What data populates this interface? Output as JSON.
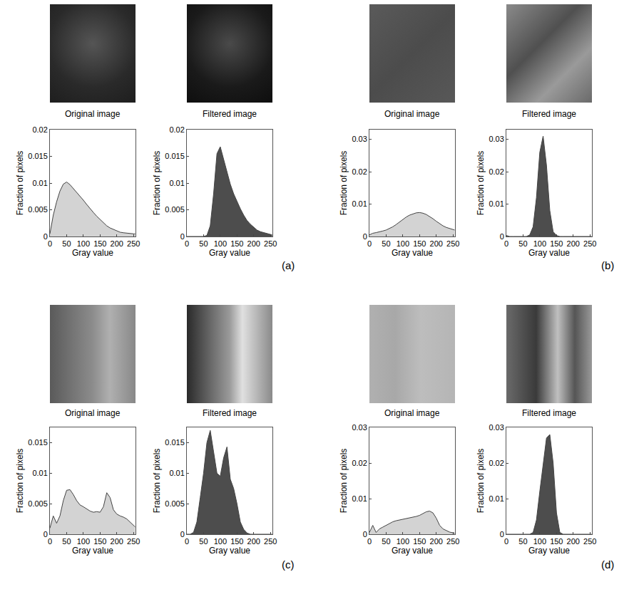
{
  "chart_data": [
    {
      "type": "area",
      "xlabel": "Gray value",
      "ylabel": "Fraction of pixels",
      "color": "#d3d3d3",
      "x": [
        0,
        10,
        20,
        30,
        40,
        50,
        60,
        70,
        80,
        90,
        100,
        110,
        120,
        130,
        140,
        150,
        160,
        170,
        180,
        190,
        200,
        210,
        220,
        230,
        240,
        250,
        255
      ],
      "values": [
        0.0005,
        0.004,
        0.0065,
        0.0085,
        0.0098,
        0.0102,
        0.0097,
        0.009,
        0.0082,
        0.0075,
        0.0068,
        0.006,
        0.0052,
        0.0045,
        0.0038,
        0.0032,
        0.0025,
        0.002,
        0.0016,
        0.0013,
        0.001,
        0.0008,
        0.0007,
        0.0006,
        0.0006,
        0.0005,
        0.0005
      ],
      "xlim": [
        0,
        256
      ],
      "xticks": [
        0,
        50,
        100,
        150,
        200,
        250
      ],
      "ylim": [
        0,
        0.02
      ],
      "yticks": [
        0,
        0.005,
        0.01,
        0.015,
        0.02
      ]
    },
    {
      "type": "area",
      "xlabel": "Gray value",
      "ylabel": "Fraction of pixels",
      "color": "#4d4d4d",
      "x": [
        0,
        10,
        20,
        30,
        40,
        50,
        60,
        70,
        80,
        90,
        100,
        110,
        120,
        130,
        140,
        150,
        160,
        170,
        180,
        190,
        200,
        210,
        220,
        230,
        240,
        250,
        255
      ],
      "values": [
        0,
        0,
        0,
        0,
        0,
        0,
        0.0002,
        0.002,
        0.008,
        0.0155,
        0.0168,
        0.0145,
        0.012,
        0.0098,
        0.008,
        0.0065,
        0.0052,
        0.004,
        0.003,
        0.0023,
        0.0017,
        0.0012,
        0.0009,
        0.0007,
        0.0005,
        0.0004,
        0.0003
      ],
      "xlim": [
        0,
        256
      ],
      "xticks": [
        0,
        50,
        100,
        150,
        200,
        250
      ],
      "ylim": [
        0,
        0.02
      ],
      "yticks": [
        0,
        0.005,
        0.01,
        0.015,
        0.02
      ]
    },
    {
      "type": "area",
      "xlabel": "Gray value",
      "ylabel": "Fraction of pixels",
      "color": "#d3d3d3",
      "x": [
        0,
        10,
        20,
        30,
        40,
        50,
        60,
        70,
        80,
        90,
        100,
        110,
        120,
        130,
        140,
        150,
        160,
        170,
        180,
        190,
        200,
        210,
        220,
        230,
        240,
        250,
        255
      ],
      "values": [
        0.0005,
        0.001,
        0.0012,
        0.0014,
        0.0017,
        0.002,
        0.0025,
        0.003,
        0.0037,
        0.0045,
        0.0053,
        0.006,
        0.0066,
        0.007,
        0.0073,
        0.0074,
        0.0072,
        0.0068,
        0.0062,
        0.0055,
        0.0047,
        0.004,
        0.0033,
        0.0028,
        0.0025,
        0.0022,
        0.002
      ],
      "xlim": [
        0,
        256
      ],
      "xticks": [
        0,
        50,
        100,
        150,
        200,
        250
      ],
      "ylim": [
        0,
        0.033
      ],
      "yticks": [
        0,
        0.01,
        0.02,
        0.03
      ]
    },
    {
      "type": "area",
      "xlabel": "Gray value",
      "ylabel": "Fraction of pixels",
      "color": "#4d4d4d",
      "x": [
        0,
        10,
        20,
        30,
        40,
        50,
        60,
        70,
        80,
        90,
        100,
        110,
        120,
        130,
        140,
        150,
        160,
        170,
        180,
        190,
        200,
        210,
        220,
        230,
        240,
        250,
        255
      ],
      "values": [
        0.0003,
        0,
        0,
        0,
        0,
        0,
        0,
        0.0005,
        0.003,
        0.012,
        0.026,
        0.031,
        0.022,
        0.008,
        0.0015,
        0.0003,
        0,
        0,
        0,
        0,
        0,
        0,
        0,
        0,
        0,
        0,
        0
      ],
      "xlim": [
        0,
        256
      ],
      "xticks": [
        0,
        50,
        100,
        150,
        200,
        250
      ],
      "ylim": [
        0,
        0.033
      ],
      "yticks": [
        0,
        0.01,
        0.02,
        0.03
      ]
    },
    {
      "type": "area",
      "xlabel": "Gray value",
      "ylabel": "Fraction of pixels",
      "color": "#d3d3d3",
      "x": [
        0,
        10,
        20,
        30,
        40,
        50,
        60,
        70,
        80,
        90,
        100,
        110,
        120,
        130,
        140,
        150,
        160,
        170,
        180,
        190,
        200,
        210,
        220,
        230,
        240,
        250,
        255
      ],
      "values": [
        0.001,
        0.003,
        0.0018,
        0.003,
        0.0055,
        0.0072,
        0.0073,
        0.0065,
        0.0055,
        0.0048,
        0.0045,
        0.0042,
        0.0038,
        0.0036,
        0.0037,
        0.0036,
        0.0045,
        0.0068,
        0.006,
        0.004,
        0.0033,
        0.003,
        0.0028,
        0.0025,
        0.002,
        0.0015,
        0.0012
      ],
      "xlim": [
        0,
        256
      ],
      "xticks": [
        0,
        50,
        100,
        150,
        200,
        250
      ],
      "ylim": [
        0,
        0.0175
      ],
      "yticks": [
        0,
        0.005,
        0.01,
        0.015
      ]
    },
    {
      "type": "area",
      "xlabel": "Gray value",
      "ylabel": "Fraction of pixels",
      "color": "#4d4d4d",
      "x": [
        0,
        10,
        20,
        30,
        40,
        50,
        60,
        70,
        80,
        90,
        100,
        110,
        120,
        130,
        140,
        150,
        160,
        170,
        180,
        190,
        200,
        210,
        220,
        230,
        240,
        250,
        255
      ],
      "values": [
        0,
        0,
        0.0003,
        0.002,
        0.006,
        0.01,
        0.015,
        0.017,
        0.0135,
        0.01,
        0.0095,
        0.0125,
        0.0143,
        0.009,
        0.0075,
        0.005,
        0.002,
        0.0008,
        0.0002,
        0,
        0,
        0,
        0,
        0,
        0,
        0,
        0
      ],
      "xlim": [
        0,
        256
      ],
      "xticks": [
        0,
        50,
        100,
        150,
        200,
        250
      ],
      "ylim": [
        0,
        0.0175
      ],
      "yticks": [
        0,
        0.005,
        0.01,
        0.015
      ]
    },
    {
      "type": "area",
      "xlabel": "Gray value",
      "ylabel": "Fraction of pixels",
      "color": "#d3d3d3",
      "x": [
        0,
        10,
        20,
        30,
        40,
        50,
        60,
        70,
        80,
        90,
        100,
        110,
        120,
        130,
        140,
        150,
        160,
        170,
        180,
        190,
        200,
        210,
        220,
        230,
        240,
        250,
        255
      ],
      "values": [
        0.0005,
        0.0025,
        0.0005,
        0.0015,
        0.002,
        0.0025,
        0.003,
        0.0035,
        0.0038,
        0.004,
        0.0042,
        0.0043,
        0.0045,
        0.0048,
        0.005,
        0.0053,
        0.0058,
        0.0063,
        0.0065,
        0.006,
        0.0045,
        0.0025,
        0.0015,
        0.001,
        0.0006,
        0.0004,
        0.0003
      ],
      "xlim": [
        0,
        256
      ],
      "xticks": [
        0,
        50,
        100,
        150,
        200,
        250
      ],
      "ylim": [
        0,
        0.03
      ],
      "yticks": [
        0,
        0.01,
        0.02,
        0.03
      ]
    },
    {
      "type": "area",
      "xlabel": "Gray value",
      "ylabel": "Fraction of pixels",
      "color": "#4d4d4d",
      "x": [
        0,
        10,
        20,
        30,
        40,
        50,
        60,
        70,
        80,
        90,
        100,
        110,
        120,
        130,
        140,
        150,
        160,
        170,
        180,
        190,
        200,
        210,
        220,
        230,
        240,
        250,
        255
      ],
      "values": [
        0,
        0,
        0,
        0,
        0,
        0,
        0,
        0,
        0.0005,
        0.004,
        0.012,
        0.02,
        0.027,
        0.028,
        0.02,
        0.006,
        0.0005,
        0,
        0,
        0,
        0,
        0,
        0,
        0,
        0,
        0,
        0
      ],
      "xlim": [
        0,
        256
      ],
      "xticks": [
        0,
        50,
        100,
        150,
        200,
        250
      ],
      "ylim": [
        0,
        0.03
      ],
      "yticks": [
        0,
        0.01,
        0.02,
        0.03
      ]
    }
  ],
  "figure": {
    "panels": [
      {
        "label": "(a)",
        "captions": [
          "Original image",
          "Filtered image"
        ]
      },
      {
        "label": "(b)",
        "captions": [
          "Original image",
          "Filtered image"
        ]
      },
      {
        "label": "(c)",
        "captions": [
          "Original image",
          "Filtered image"
        ]
      },
      {
        "label": "(d)",
        "captions": [
          "Original image",
          "Filtered image"
        ]
      }
    ]
  }
}
